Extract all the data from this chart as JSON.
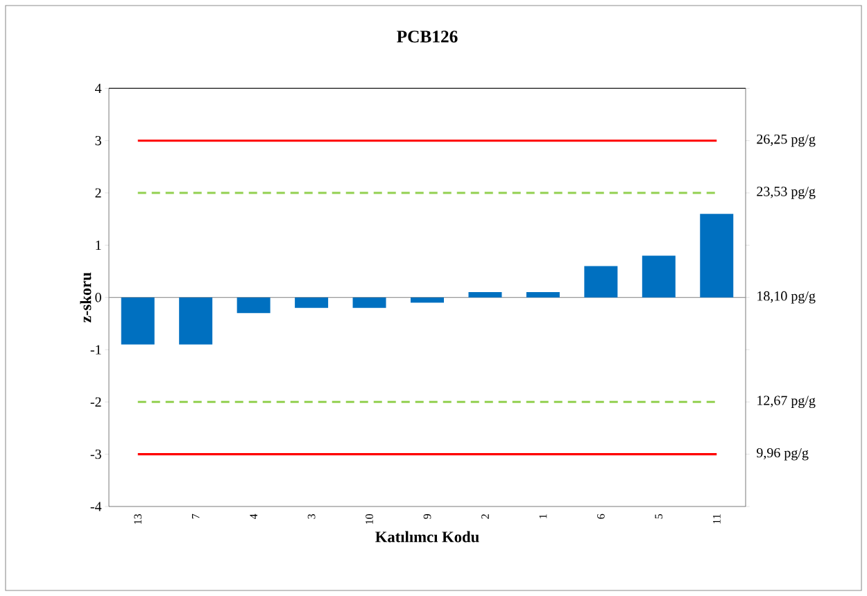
{
  "chart_data": {
    "type": "bar",
    "title": "PCB126",
    "xlabel": "Katılımcı Kodu",
    "ylabel": "z-skoru",
    "categories": [
      "13",
      "7",
      "4",
      "3",
      "10",
      "9",
      "2",
      "1",
      "6",
      "5",
      "11"
    ],
    "values": [
      -0.9,
      -0.9,
      -0.3,
      -0.2,
      -0.2,
      -0.1,
      0.1,
      0.1,
      0.6,
      0.8,
      1.6
    ],
    "color": "#0070c0",
    "ylim": [
      -4,
      4
    ],
    "yticks": [
      -4,
      -3,
      -2,
      -1,
      0,
      1,
      2,
      3,
      4
    ],
    "ref_lines": [
      {
        "axis": "y",
        "value": 3,
        "label": "26,25 pg/g",
        "color": "#ff0000",
        "line_style": "solid"
      },
      {
        "axis": "y",
        "value": 2,
        "label": "23,53 pg/g",
        "color": "#92d050",
        "line_style": "dashed"
      },
      {
        "axis": "y",
        "value": -2,
        "label": "12,67 pg/g",
        "color": "#92d050",
        "line_style": "dashed"
      },
      {
        "axis": "y",
        "value": -3,
        "label": "9,96 pg/g",
        "color": "#ff0000",
        "line_style": "solid"
      }
    ],
    "annotations": [
      "18,10 pg/g"
    ]
  }
}
